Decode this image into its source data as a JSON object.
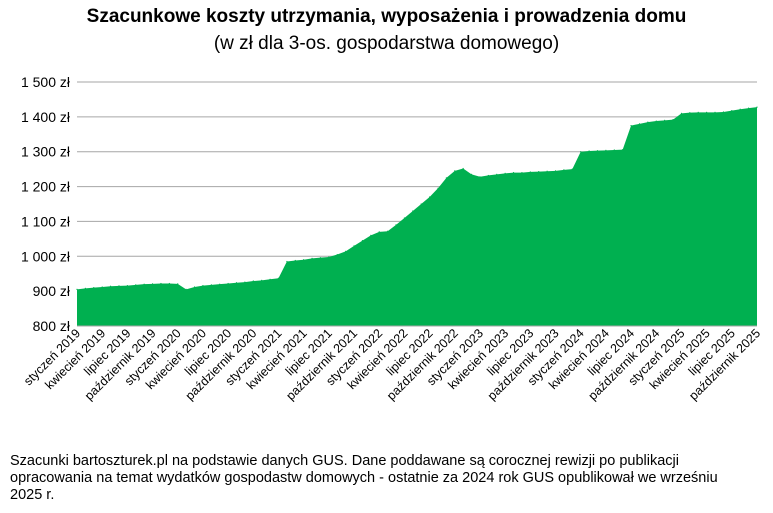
{
  "chart_data": {
    "type": "area",
    "title": "Szacunkowe koszty utrzymania, wyposażenia i prowadzenia domu",
    "subtitle": "(w zł dla 3-os. gospodarstwa domowego)",
    "xlabel": "",
    "ylabel": "",
    "ylim": [
      800,
      1500
    ],
    "yticks": [
      800,
      900,
      1000,
      1100,
      1200,
      1300,
      1400,
      1500
    ],
    "ytick_labels": [
      "800 zł",
      "900 zł",
      "1 000 zł",
      "1 100 zł",
      "1 200 zł",
      "1 300 zł",
      "1 400 zł",
      "1 500 zł"
    ],
    "grid": true,
    "color": "#00B050",
    "x": [
      "styczeń 2019",
      "luty 2019",
      "marzec 2019",
      "kwiecień 2019",
      "maj 2019",
      "czerwiec 2019",
      "lipiec 2019",
      "sierpień 2019",
      "wrzesień 2019",
      "październik 2019",
      "listopad 2019",
      "grudzień 2019",
      "styczeń 2020",
      "luty 2020",
      "marzec 2020",
      "kwiecień 2020",
      "maj 2020",
      "czerwiec 2020",
      "lipiec 2020",
      "sierpień 2020",
      "wrzesień 2020",
      "październik 2020",
      "listopad 2020",
      "grudzień 2020",
      "styczeń 2021",
      "luty 2021",
      "marzec 2021",
      "kwiecień 2021",
      "maj 2021",
      "czerwiec 2021",
      "lipiec 2021",
      "sierpień 2021",
      "wrzesień 2021",
      "październik 2021",
      "listopad 2021",
      "grudzień 2021",
      "styczeń 2022",
      "luty 2022",
      "marzec 2022",
      "kwiecień 2022",
      "maj 2022",
      "czerwiec 2022",
      "lipiec 2022",
      "sierpień 2022",
      "wrzesień 2022",
      "październik 2022",
      "listopad 2022",
      "grudzień 2022",
      "styczeń 2023",
      "luty 2023",
      "marzec 2023",
      "kwiecień 2023",
      "maj 2023",
      "czerwiec 2023",
      "lipiec 2023",
      "sierpień 2023",
      "wrzesień 2023",
      "październik 2023",
      "listopad 2023",
      "grudzień 2023",
      "styczeń 2024",
      "luty 2024",
      "marzec 2024",
      "kwiecień 2024",
      "maj 2024",
      "czerwiec 2024",
      "lipiec 2024",
      "sierpień 2024",
      "wrzesień 2024",
      "październik 2024",
      "listopad 2024",
      "grudzień 2024",
      "styczeń 2025",
      "luty 2025",
      "marzec 2025",
      "kwiecień 2025",
      "maj 2025",
      "czerwiec 2025",
      "lipiec 2025",
      "sierpień 2025",
      "wrzesień 2025",
      "październik 2025"
    ],
    "x_tick_labels": [
      "styczeń 2019",
      "kwiecień 2019",
      "lipiec 2019",
      "październik 2019",
      "styczeń 2020",
      "kwiecień 2020",
      "lipiec 2020",
      "październik 2020",
      "styczeń 2021",
      "kwiecień 2021",
      "lipiec 2021",
      "październik 2021",
      "styczeń 2022",
      "kwiecień 2022",
      "lipiec 2022",
      "październik 2022",
      "styczeń 2023",
      "kwiecień 2023",
      "lipiec 2023",
      "październik 2023",
      "styczeń 2024",
      "kwiecień 2024",
      "lipiec 2024",
      "październik 2024",
      "styczeń 2025",
      "kwiecień 2025",
      "lipiec 2025",
      "październik 2025"
    ],
    "values": [
      905,
      908,
      910,
      912,
      914,
      915,
      916,
      918,
      920,
      921,
      922,
      922,
      921,
      905,
      912,
      916,
      918,
      920,
      922,
      924,
      926,
      929,
      931,
      934,
      937,
      985,
      988,
      990,
      994,
      996,
      998,
      1005,
      1014,
      1030,
      1045,
      1060,
      1070,
      1072,
      1090,
      1110,
      1130,
      1150,
      1170,
      1195,
      1225,
      1245,
      1252,
      1235,
      1228,
      1232,
      1235,
      1238,
      1240,
      1240,
      1242,
      1243,
      1244,
      1245,
      1248,
      1250,
      1300,
      1302,
      1303,
      1304,
      1305,
      1306,
      1375,
      1380,
      1385,
      1388,
      1390,
      1392,
      1410,
      1412,
      1413,
      1413,
      1413,
      1414,
      1418,
      1422,
      1425,
      1428
    ]
  },
  "footnote": "Szacunki bartoszturek.pl na podstawie danych GUS. Dane poddawane są corocznej rewizji po publikacji opracowania na temat wydatków gospodastw domowych - ostatnie za 2024 rok GUS opublikował we wrześniu 2025 r."
}
